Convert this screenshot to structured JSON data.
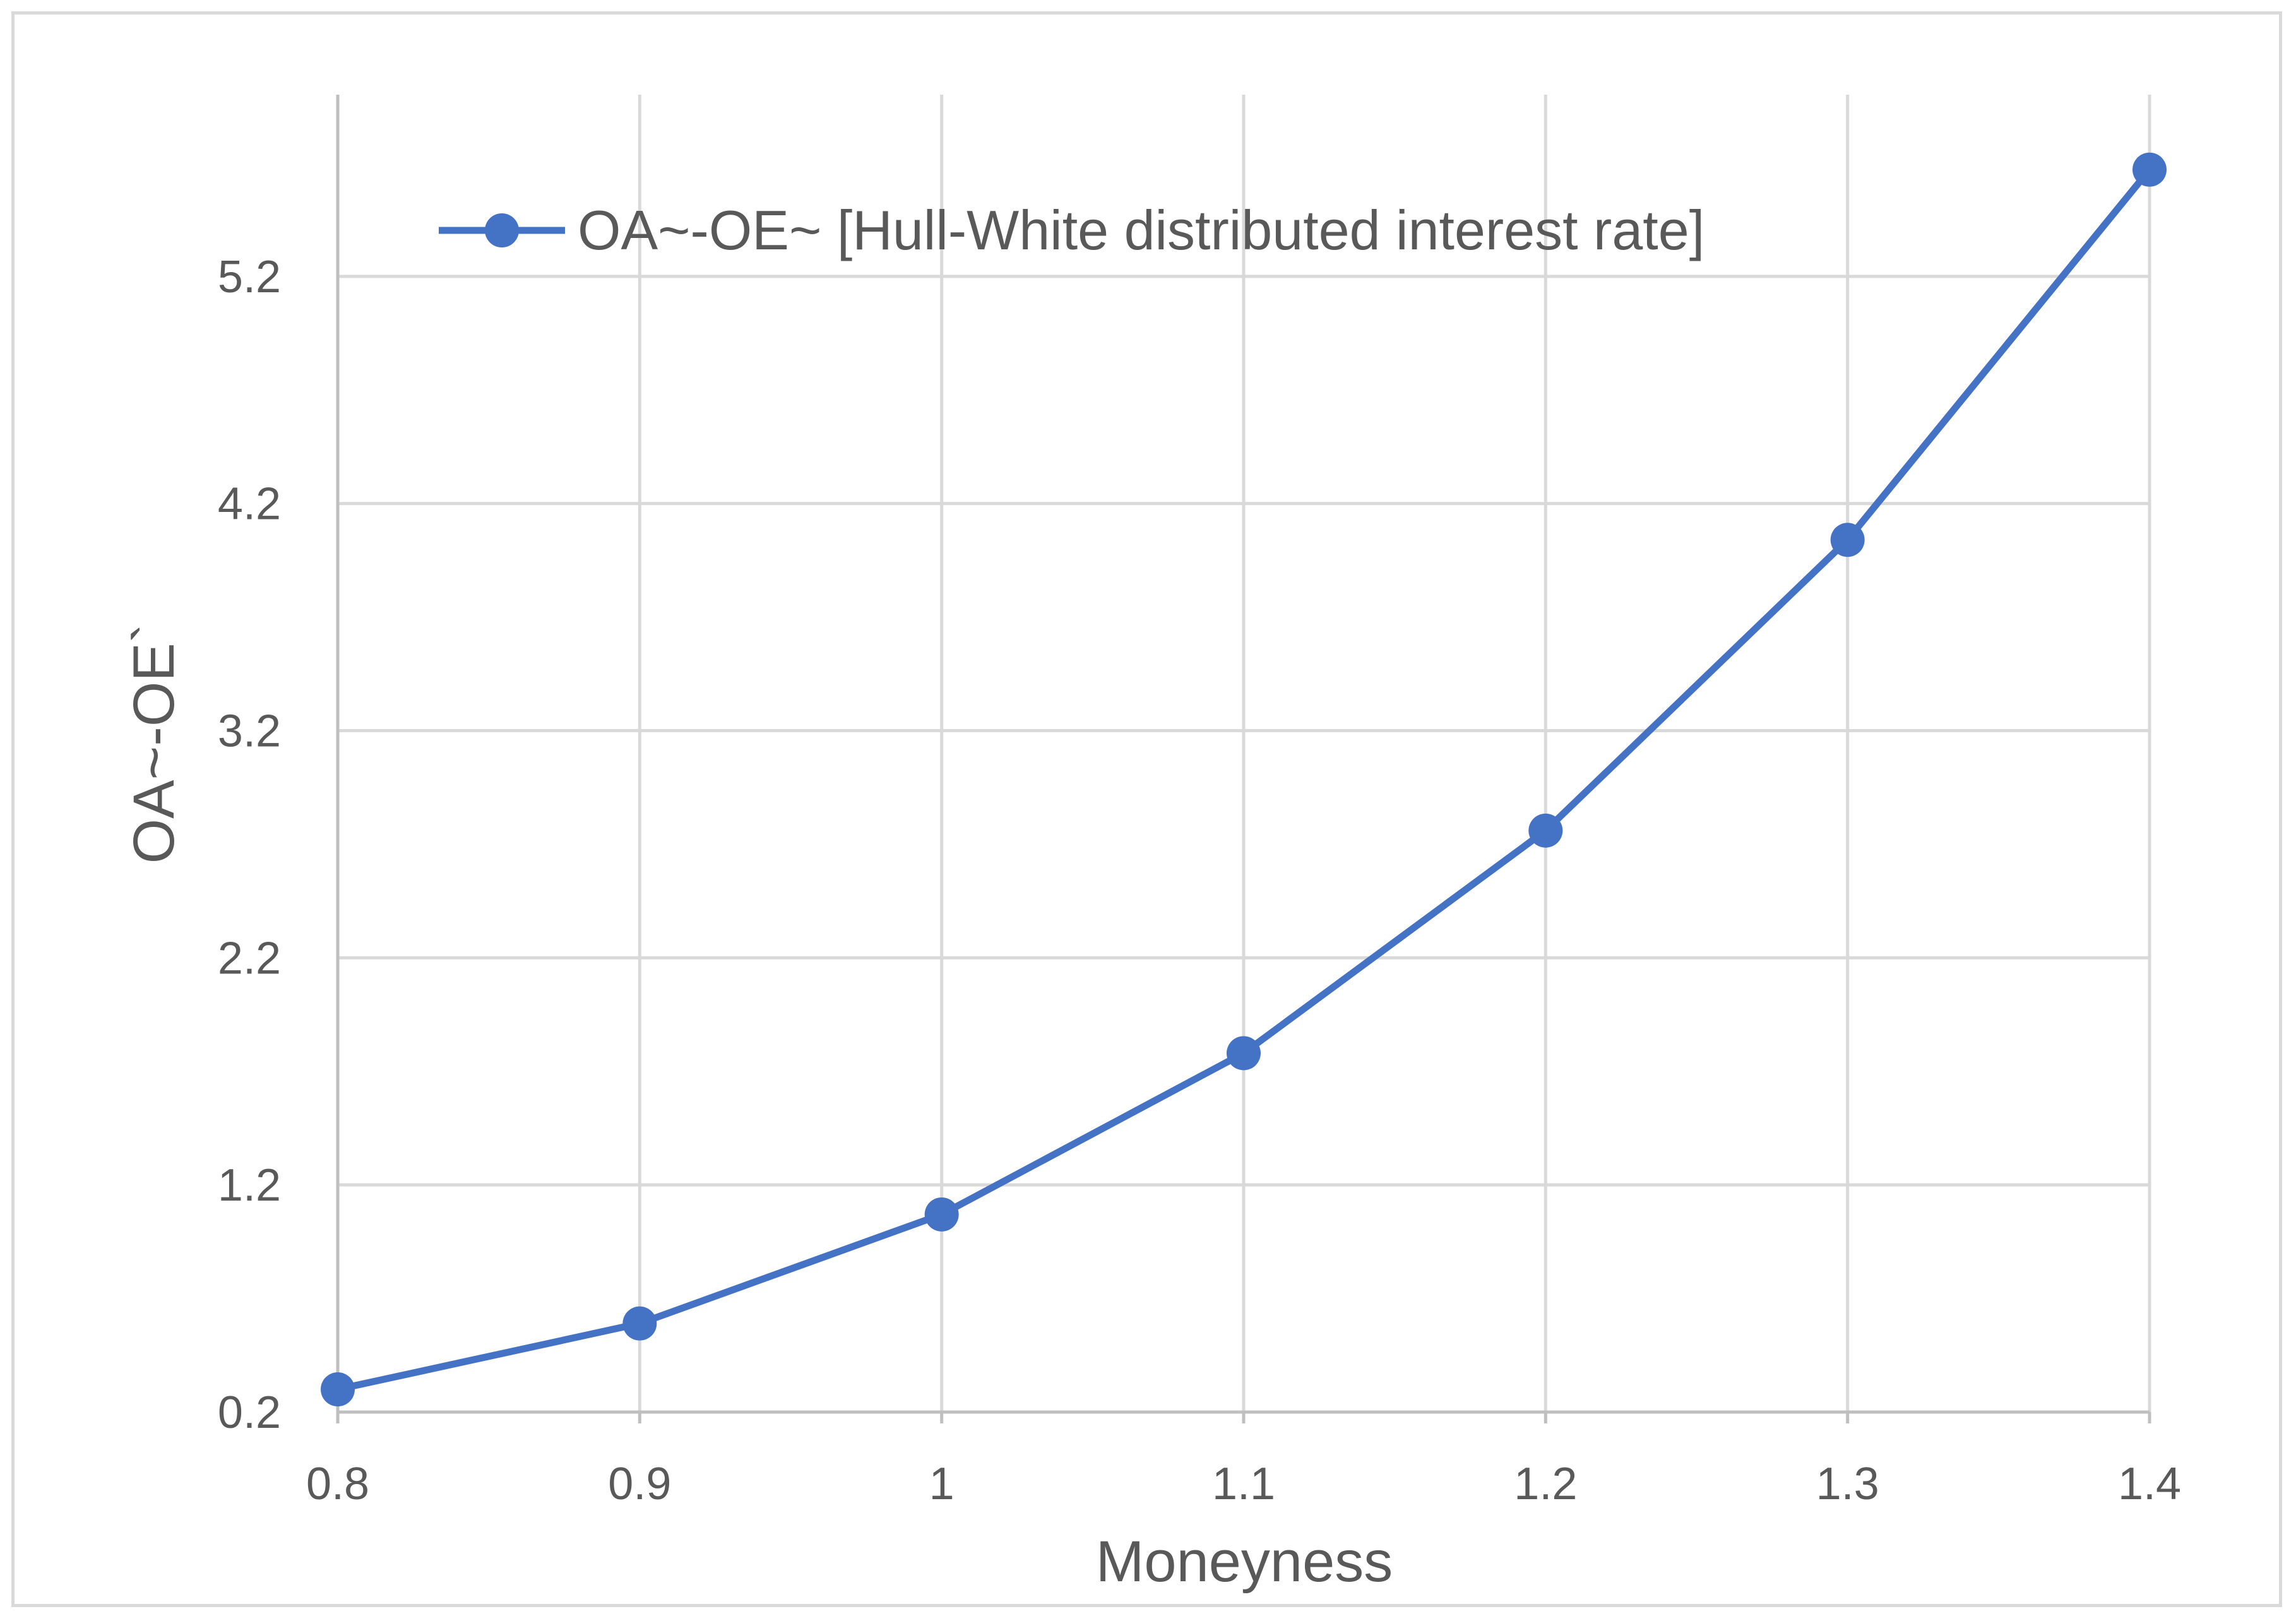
{
  "chart_data": {
    "type": "line",
    "title": "",
    "xlabel": "Moneyness",
    "ylabel": "OA~-OE`",
    "x": [
      0.8,
      0.9,
      1,
      1.1,
      1.2,
      1.3,
      1.4
    ],
    "x_tick_labels": [
      "0.8",
      "0.9",
      "1",
      "1.1",
      "1.2",
      "1.3",
      "1.4"
    ],
    "y_ticks": [
      0.2,
      1.2,
      2.2,
      3.2,
      4.2,
      5.2
    ],
    "y_tick_labels": [
      "0.2",
      "1.2",
      "2.2",
      "3.2",
      "4.2",
      "5.2"
    ],
    "xlim": [
      0.8,
      1.4
    ],
    "ylim": [
      0.2,
      6.0
    ],
    "grid": true,
    "legend_position": "top-center",
    "series": [
      {
        "name": "OA~-OE~ [Hull-White distributed interest rate]",
        "color": "#4472c4",
        "marker": "circle",
        "values": [
          0.3,
          0.59,
          1.07,
          1.78,
          2.76,
          4.04,
          5.67
        ]
      }
    ]
  }
}
